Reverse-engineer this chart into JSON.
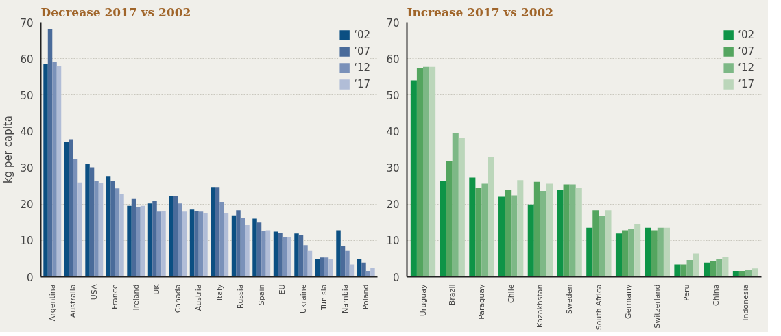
{
  "chart_data": [
    {
      "type": "bar",
      "title": "Decrease 2017 vs 2002",
      "ylabel": "kg per capita",
      "categories": [
        "Argentina",
        "Australia",
        "USA",
        "France",
        "Ireland",
        "UK",
        "Canada",
        "Austria",
        "Italy",
        "Russia",
        "Spain",
        "EU",
        "Ukraine",
        "Tunisia",
        "Nambia",
        "Poland"
      ],
      "series": [
        {
          "name": "‘02",
          "color": "#0b4f82",
          "values": [
            58.6,
            37.1,
            31.1,
            27.7,
            19.5,
            20.2,
            22.2,
            18.5,
            24.7,
            16.9,
            16.0,
            12.4,
            11.9,
            5.0,
            12.8,
            5.0
          ]
        },
        {
          "name": "‘07",
          "color": "#4a6b9a",
          "values": [
            68.2,
            37.8,
            30.1,
            26.3,
            21.4,
            20.8,
            22.2,
            18.1,
            24.7,
            18.3,
            14.9,
            12.1,
            11.5,
            5.3,
            8.5,
            3.9
          ]
        },
        {
          "name": "‘12",
          "color": "#7a91b9",
          "values": [
            59.1,
            32.4,
            26.3,
            24.3,
            19.2,
            17.9,
            20.2,
            17.9,
            20.6,
            16.3,
            12.6,
            10.8,
            8.7,
            5.3,
            7.1,
            1.6
          ]
        },
        {
          "name": "‘17",
          "color": "#b1bdd7",
          "values": [
            57.9,
            25.9,
            25.7,
            22.7,
            19.5,
            18.1,
            17.9,
            17.6,
            17.6,
            14.2,
            12.8,
            11.0,
            7.1,
            4.8,
            3.4,
            2.5
          ]
        }
      ],
      "ylim": [
        0,
        70
      ],
      "yticks": [
        0,
        10,
        20,
        30,
        40,
        50,
        60,
        70
      ],
      "grid": "y",
      "legend": "top right"
    },
    {
      "type": "bar",
      "title": "Increase 2017 vs 2002",
      "categories": [
        "Uruguay",
        "Brazil",
        "Paraguay",
        "Chile",
        "Kazakhstan",
        "Sweden",
        "South Africa",
        "Germany",
        "Switzerland",
        "Peru",
        "China",
        "Indonesia"
      ],
      "series": [
        {
          "name": "‘02",
          "color": "#0e9447",
          "values": [
            54.0,
            26.3,
            27.3,
            22.0,
            19.9,
            24.0,
            13.5,
            11.9,
            13.5,
            3.4,
            3.9,
            1.6
          ]
        },
        {
          "name": "‘07",
          "color": "#54a55f",
          "values": [
            57.5,
            31.8,
            24.5,
            23.8,
            26.1,
            25.4,
            18.3,
            12.8,
            12.8,
            3.4,
            4.4,
            1.6
          ]
        },
        {
          "name": "‘12",
          "color": "#7db886",
          "values": [
            57.7,
            39.4,
            25.6,
            22.4,
            23.6,
            25.4,
            16.7,
            13.1,
            13.5,
            4.6,
            4.8,
            1.8
          ]
        },
        {
          "name": "‘17",
          "color": "#bbd6ba",
          "values": [
            57.7,
            38.2,
            33.0,
            26.6,
            25.6,
            24.5,
            18.3,
            14.4,
            13.5,
            6.4,
            5.5,
            2.3
          ]
        }
      ],
      "ylim": [
        0,
        70
      ],
      "yticks": [
        0,
        10,
        20,
        30,
        40,
        50,
        60,
        70
      ],
      "grid": "y",
      "legend": "top right"
    }
  ]
}
